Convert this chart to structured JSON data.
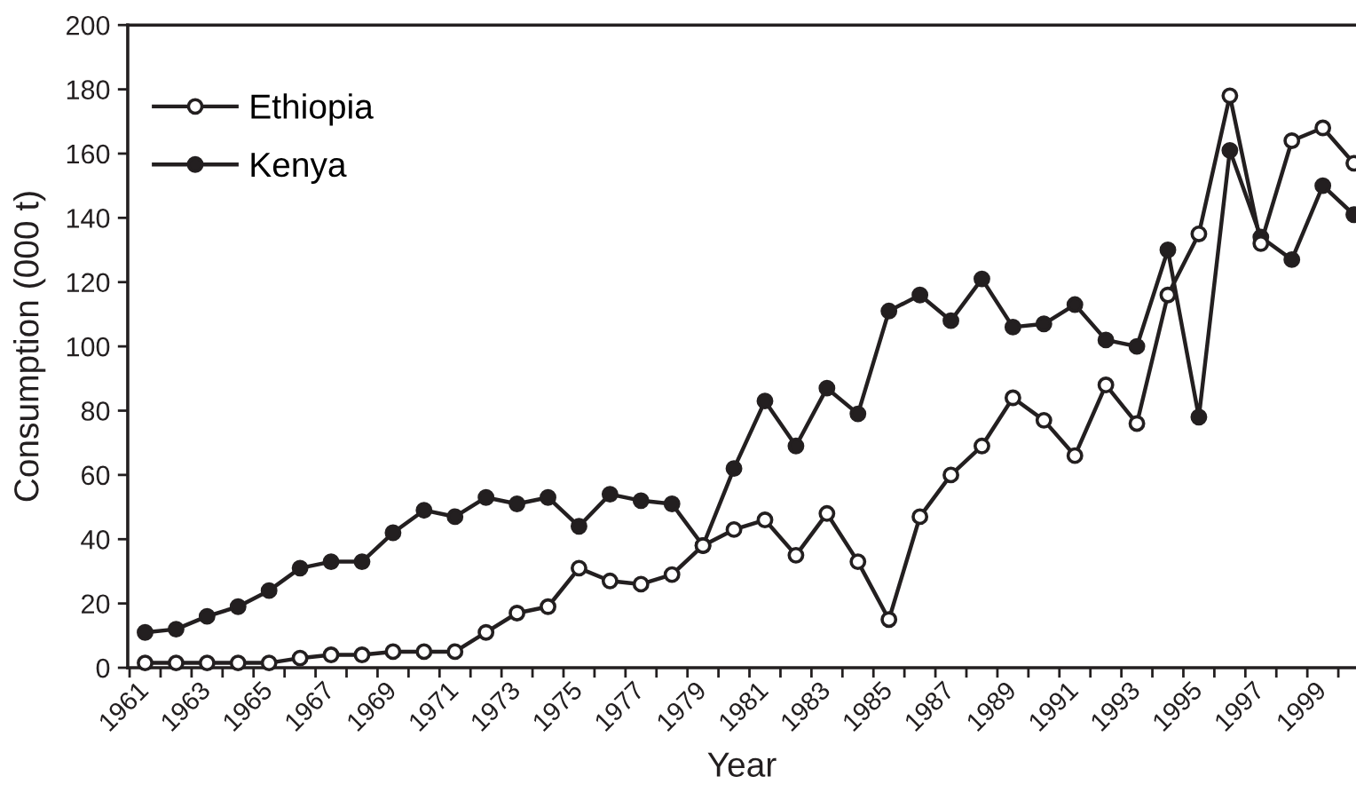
{
  "chart_data": {
    "type": "line",
    "xlabel": "Year",
    "ylabel": "Consumption (000 t)",
    "categories": [
      "1961",
      null,
      "1963",
      null,
      "1965",
      null,
      "1967",
      null,
      "1969",
      null,
      "1971",
      null,
      "1973",
      null,
      "1975",
      null,
      "1977",
      null,
      "1979",
      null,
      "1981",
      null,
      "1983",
      null,
      "1985",
      null,
      "1987",
      null,
      "1989",
      null,
      "1991",
      null,
      "1993",
      null,
      "1995",
      null,
      "1997",
      null,
      "1999",
      null
    ],
    "series": [
      {
        "name": "Ethiopia",
        "color": "#231f20",
        "values": [
          1.5,
          1.5,
          1.5,
          1.5,
          1.5,
          3,
          4,
          4,
          5,
          5,
          5,
          11,
          17,
          19,
          31,
          27,
          26,
          29,
          38,
          43,
          46,
          35,
          48,
          33,
          15,
          47,
          60,
          69,
          84,
          77,
          66,
          88,
          76,
          116,
          135,
          178,
          132,
          164,
          168,
          157
        ]
      },
      {
        "name": "Kenya",
        "color": "#231f20",
        "values": [
          11,
          12,
          16,
          19,
          24,
          31,
          33,
          33,
          42,
          49,
          47,
          53,
          51,
          53,
          44,
          54,
          52,
          51,
          38,
          62,
          83,
          69,
          87,
          79,
          111,
          116,
          108,
          121,
          106,
          107,
          113,
          102,
          100,
          130,
          78,
          161,
          134,
          127,
          150,
          141
        ]
      }
    ],
    "ylim": [
      0,
      200
    ],
    "yticks": [
      0,
      20,
      40,
      60,
      80,
      100,
      120,
      140,
      160,
      180,
      200
    ],
    "marker": "circle",
    "line_style": "solid",
    "legend": "top left",
    "grid": false
  }
}
